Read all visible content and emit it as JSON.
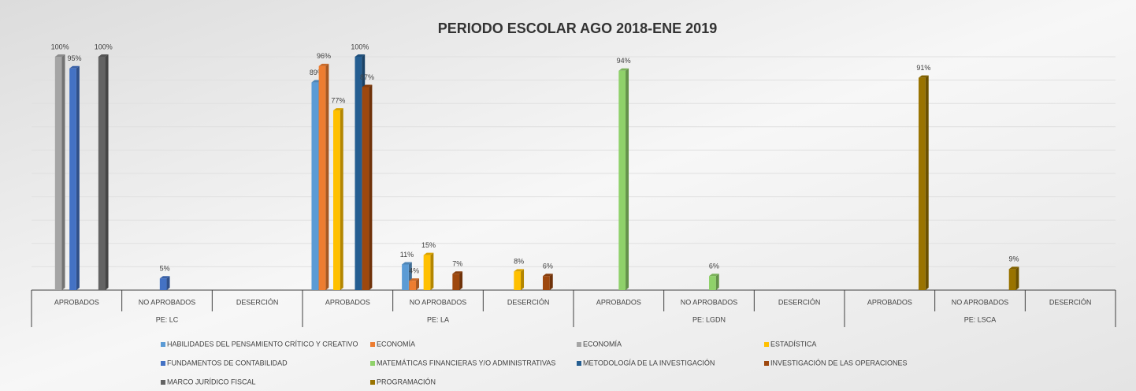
{
  "chart_data": {
    "type": "bar",
    "title": "PERIODO ESCOLAR AGO 2018-ENE 2019",
    "categories": [
      "APROBADOS",
      "NO APROBADOS",
      "DESERCIÓN",
      "APROBADOS",
      "NO APROBADOS",
      "DESERCIÓN",
      "APROBADOS",
      "NO APROBADOS",
      "DESERCIÓN",
      "APROBADOS",
      "NO APROBADOS",
      "DESERCIÓN"
    ],
    "category_groups": [
      "PE: LC",
      "PE: LA",
      "PE: LGDN",
      "PE: LSCA"
    ],
    "ylim": [
      0,
      100
    ],
    "yticks": [
      0,
      10,
      20,
      30,
      40,
      50,
      60,
      70,
      80,
      90,
      100
    ],
    "grid": true,
    "legend": "bottom",
    "series": [
      {
        "name": "HABILIDADES DEL PENSAMIENTO CRÍTICO Y CREATIVO",
        "color": "#5b9bd5",
        "values": [
          null,
          null,
          null,
          89,
          11,
          null,
          null,
          null,
          null,
          null,
          null,
          null
        ],
        "value_labels": [
          null,
          null,
          null,
          "89%",
          "11%",
          null,
          null,
          null,
          null,
          null,
          null,
          null
        ]
      },
      {
        "name": "ECONOMÍA",
        "color": "#ed7d31",
        "values": [
          null,
          null,
          null,
          96,
          4,
          null,
          null,
          null,
          null,
          null,
          null,
          null
        ],
        "value_labels": [
          null,
          null,
          null,
          "96%",
          "4%",
          null,
          null,
          null,
          null,
          null,
          null,
          null
        ]
      },
      {
        "name": "ECONOMÍA",
        "color": "#a5a5a5",
        "values": [
          100,
          null,
          null,
          null,
          null,
          null,
          null,
          null,
          null,
          null,
          null,
          null
        ],
        "value_labels": [
          "100%",
          null,
          null,
          null,
          null,
          null,
          null,
          null,
          null,
          null,
          null,
          null
        ]
      },
      {
        "name": "ESTADÍSTICA",
        "color": "#ffc000",
        "values": [
          null,
          null,
          null,
          77,
          15,
          8,
          null,
          null,
          null,
          null,
          null,
          null
        ],
        "value_labels": [
          null,
          null,
          null,
          "77%",
          "15%",
          "8%",
          null,
          null,
          null,
          null,
          null,
          null
        ]
      },
      {
        "name": "FUNDAMENTOS DE CONTABILIDAD",
        "color": "#4472c4",
        "values": [
          95,
          5,
          null,
          null,
          null,
          null,
          null,
          null,
          null,
          null,
          null,
          null
        ],
        "value_labels": [
          "95%",
          "5%",
          null,
          null,
          null,
          null,
          null,
          null,
          null,
          null,
          null,
          null
        ]
      },
      {
        "name": "MATEMÁTICAS FINANCIERAS Y/O ADMINISTRATIVAS",
        "color": "#8fd16a",
        "values": [
          null,
          null,
          null,
          null,
          null,
          null,
          94,
          6,
          null,
          null,
          null,
          null
        ],
        "value_labels": [
          null,
          null,
          null,
          null,
          null,
          null,
          "94%",
          "6%",
          null,
          null,
          null,
          null
        ]
      },
      {
        "name": "METODOLOGÍA DE LA INVESTIGACIÓN",
        "color": "#255e91",
        "values": [
          null,
          null,
          null,
          100,
          null,
          null,
          null,
          null,
          null,
          null,
          null,
          null
        ],
        "value_labels": [
          null,
          null,
          null,
          "100%",
          null,
          null,
          null,
          null,
          null,
          null,
          null,
          null
        ]
      },
      {
        "name": "INVESTIGACIÓN DE LAS OPERACIONES",
        "color": "#9e480e",
        "values": [
          null,
          null,
          null,
          87,
          7,
          6,
          null,
          null,
          null,
          null,
          null,
          null
        ],
        "value_labels": [
          null,
          null,
          null,
          "87%",
          "7%",
          "6%",
          null,
          null,
          null,
          null,
          null,
          null
        ]
      },
      {
        "name": "MARCO JURÍDICO FISCAL",
        "color": "#636363",
        "values": [
          100,
          null,
          null,
          null,
          null,
          null,
          null,
          null,
          null,
          null,
          null,
          null
        ],
        "value_labels": [
          "100%",
          null,
          null,
          null,
          null,
          null,
          null,
          null,
          null,
          null,
          null,
          null
        ]
      },
      {
        "name": "PROGRAMACIÓN",
        "color": "#997300",
        "values": [
          null,
          null,
          null,
          null,
          null,
          null,
          null,
          null,
          null,
          91,
          9,
          null
        ],
        "value_labels": [
          null,
          null,
          null,
          null,
          null,
          null,
          null,
          null,
          null,
          "91%",
          "9%",
          null
        ]
      }
    ]
  }
}
